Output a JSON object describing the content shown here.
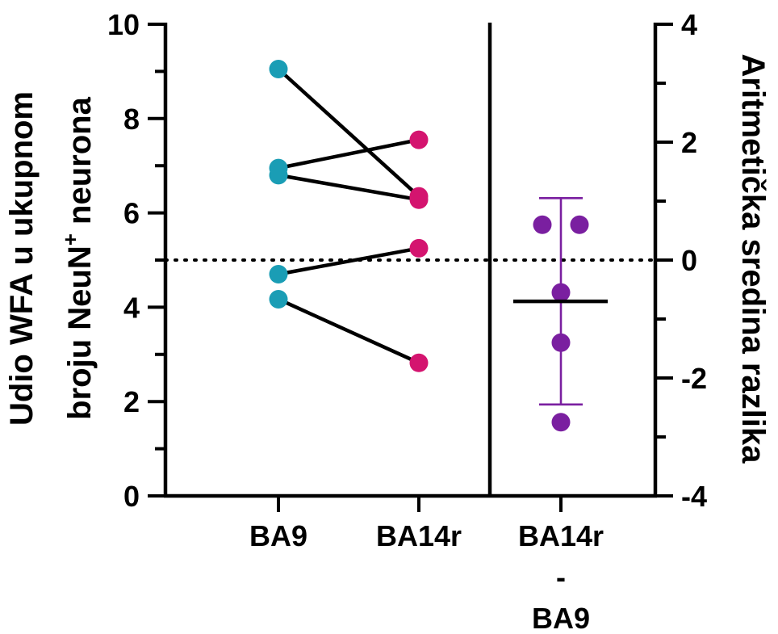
{
  "chart_data": {
    "type": "scatter",
    "left_axis": {
      "label_line1": "Udio WFA u ukupnom",
      "label_line2_prefix": "broju NeuN",
      "label_line2_sup": "+",
      "label_line2_suffix": " neurona",
      "ylim": [
        0,
        10
      ],
      "major_ticks": [
        "0",
        "2",
        "4",
        "6",
        "8",
        "10"
      ]
    },
    "right_axis": {
      "label": "Aritmetička sredina razlika",
      "ylim": [
        -4,
        4
      ],
      "major_ticks": [
        "4",
        "2",
        "0",
        "-2",
        "-4"
      ]
    },
    "categories": [
      {
        "key": "BA9",
        "label_lines": [
          "BA9"
        ]
      },
      {
        "key": "BA14r",
        "label_lines": [
          "BA14r"
        ]
      },
      {
        "key": "diff",
        "label_lines": [
          "BA14r",
          "-",
          "BA9"
        ]
      }
    ],
    "pairs": [
      {
        "BA9": 9.05,
        "BA14r": 6.35
      },
      {
        "BA9": 6.95,
        "BA14r": 7.55
      },
      {
        "BA9": 6.8,
        "BA14r": 6.28
      },
      {
        "BA9": 4.7,
        "BA14r": 5.25
      },
      {
        "BA9": 4.17,
        "BA14r": 2.82
      }
    ],
    "differences": [
      0.6,
      0.6,
      -0.55,
      -1.4,
      -2.75
    ],
    "difference_jitter": [
      -1,
      1,
      0,
      0,
      0
    ],
    "mean_difference": -0.7,
    "error_bar": {
      "upper": 1.05,
      "lower": -2.45
    },
    "reference_line": 0,
    "colors": {
      "BA9": "#1a9db5",
      "BA14r": "#d4146f",
      "diff": "#7a1fa0",
      "lines": "#000000"
    }
  }
}
